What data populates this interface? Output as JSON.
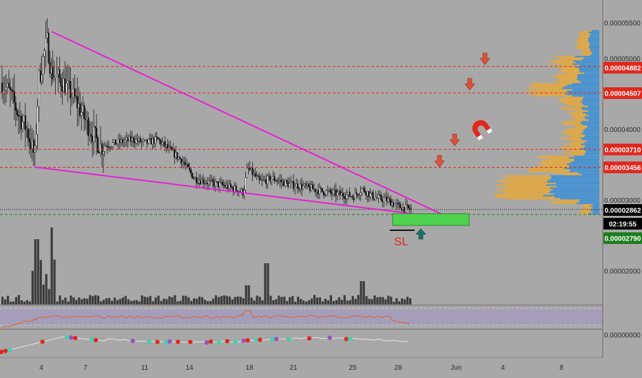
{
  "chart_data": {
    "type": "candlestick",
    "y_axis_ticks": [
      "0.00005500",
      "0.00005000",
      "0.00004000",
      "0.00003000",
      "0.00002000"
    ],
    "x_axis_ticks": [
      "4",
      "7",
      "11",
      "14",
      "18",
      "21",
      "25",
      "28",
      "Jun",
      "4",
      "8"
    ],
    "price_labels": [
      {
        "text": "0.00004882",
        "value": 4.882e-05,
        "color": "#e0281e",
        "text_color": "#ffffff"
      },
      {
        "text": "0.00004507",
        "value": 4.507e-05,
        "color": "#e0281e",
        "text_color": "#ffffff"
      },
      {
        "text": "0.00003710",
        "value": 3.71e-05,
        "color": "#e0281e",
        "text_color": "#ffffff"
      },
      {
        "text": "0.00003456",
        "value": 3.456e-05,
        "color": "#e0281e",
        "text_color": "#ffffff"
      },
      {
        "text": "0.00002862",
        "value": 2.862e-05,
        "color": "#000000",
        "text_color": "#ffffff"
      },
      {
        "text": "02:19:55",
        "value": null,
        "color": "#000000",
        "text_color": "#ffffff"
      },
      {
        "text": "0.00002790",
        "value": 2.79e-05,
        "color": "#1e7d1e",
        "text_color": "#ffffff"
      }
    ],
    "resistance_levels": [
      4.882e-05,
      4.507e-05,
      3.71e-05,
      3.456e-05
    ],
    "current_price": 2.862e-05,
    "stop_loss_level": 2.79e-05,
    "annotations": [
      {
        "text": "SL",
        "color": "#e0281e"
      }
    ],
    "oscillator_axis_label": "0.00000000",
    "wedge_color": "#e81fd3",
    "volume_profile_colors": [
      "#3a8fd6",
      "#e6a93a"
    ],
    "up_arrow_color": "#1f6f6a",
    "down_arrow_color": "#e0503a",
    "rsi_line_color": "#e0602a"
  }
}
